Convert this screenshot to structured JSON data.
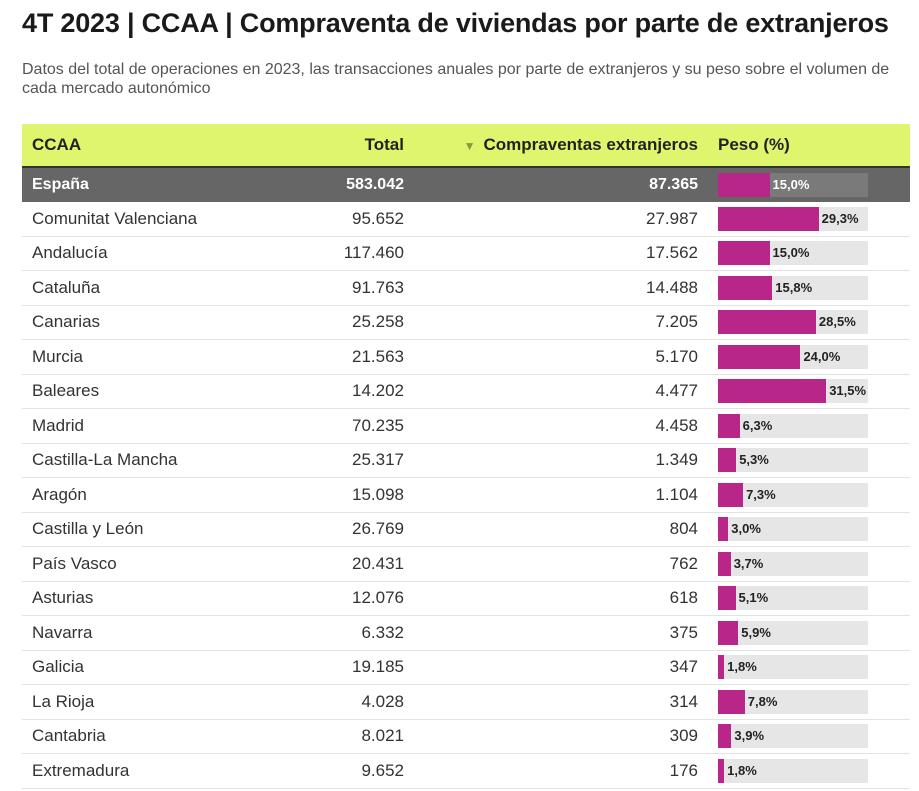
{
  "header": {
    "title": "4T 2023 | CCAA | Compraventa de viviendas por parte de extranjeros",
    "subtitle": "Datos del total de operaciones en 2023, las transacciones anuales por parte de extranjeros y su peso sobre el volumen de cada mercado autonómico"
  },
  "table": {
    "columns": {
      "ccaa": "CCAA",
      "total": "Total",
      "extranjeros": "Compraventas extranjeros",
      "peso": "Peso (%)"
    },
    "sort_icon": "sort-desc-triangle-icon",
    "total_row": {
      "name": "España",
      "total": "583.042",
      "extranjeros": "87.365",
      "peso": 15.0,
      "peso_label": "15,0%"
    }
  },
  "chart_data": {
    "type": "table",
    "bar_color": "#b8268a",
    "header_color": "#dff56e",
    "peso_max": 100,
    "rows": [
      {
        "name": "Comunitat Valenciana",
        "total": "95.652",
        "extranjeros": "27.987",
        "peso": 29.3,
        "peso_label": "29,3%"
      },
      {
        "name": "Andalucía",
        "total": "117.460",
        "extranjeros": "17.562",
        "peso": 15.0,
        "peso_label": "15,0%"
      },
      {
        "name": "Cataluña",
        "total": "91.763",
        "extranjeros": "14.488",
        "peso": 15.8,
        "peso_label": "15,8%"
      },
      {
        "name": "Canarias",
        "total": "25.258",
        "extranjeros": "7.205",
        "peso": 28.5,
        "peso_label": "28,5%"
      },
      {
        "name": "Murcia",
        "total": "21.563",
        "extranjeros": "5.170",
        "peso": 24.0,
        "peso_label": "24,0%"
      },
      {
        "name": "Baleares",
        "total": "14.202",
        "extranjeros": "4.477",
        "peso": 31.5,
        "peso_label": "31,5%"
      },
      {
        "name": "Madrid",
        "total": "70.235",
        "extranjeros": "4.458",
        "peso": 6.3,
        "peso_label": "6,3%"
      },
      {
        "name": "Castilla-La Mancha",
        "total": "25.317",
        "extranjeros": "1.349",
        "peso": 5.3,
        "peso_label": "5,3%"
      },
      {
        "name": "Aragón",
        "total": "15.098",
        "extranjeros": "1.104",
        "peso": 7.3,
        "peso_label": "7,3%"
      },
      {
        "name": "Castilla y León",
        "total": "26.769",
        "extranjeros": "804",
        "peso": 3.0,
        "peso_label": "3,0%"
      },
      {
        "name": "País Vasco",
        "total": "20.431",
        "extranjeros": "762",
        "peso": 3.7,
        "peso_label": "3,7%"
      },
      {
        "name": "Asturias",
        "total": "12.076",
        "extranjeros": "618",
        "peso": 5.1,
        "peso_label": "5,1%"
      },
      {
        "name": "Navarra",
        "total": "6.332",
        "extranjeros": "375",
        "peso": 5.9,
        "peso_label": "5,9%"
      },
      {
        "name": "Galicia",
        "total": "19.185",
        "extranjeros": "347",
        "peso": 1.8,
        "peso_label": "1,8%"
      },
      {
        "name": "La Rioja",
        "total": "4.028",
        "extranjeros": "314",
        "peso": 7.8,
        "peso_label": "7,8%"
      },
      {
        "name": "Cantabria",
        "total": "8.021",
        "extranjeros": "309",
        "peso": 3.9,
        "peso_label": "3,9%"
      },
      {
        "name": "Extremadura",
        "total": "9.652",
        "extranjeros": "176",
        "peso": 1.8,
        "peso_label": "1,8%"
      }
    ]
  }
}
